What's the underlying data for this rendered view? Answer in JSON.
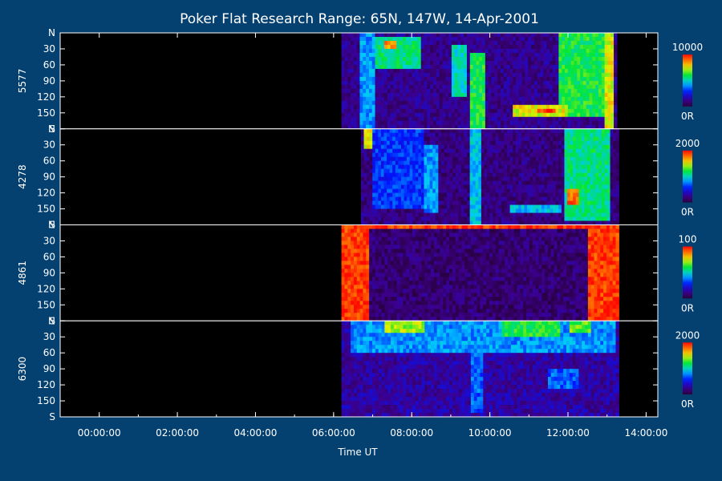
{
  "chart_data": {
    "type": "heatmap",
    "title": "Poker Flat Research Range: 65N, 147W, 14-Apr-2001",
    "xlabel": "Time UT",
    "x_unit": "hours UT",
    "xlim": [
      -1.0,
      14.3
    ],
    "x_ticks": [
      {
        "value": 0,
        "label": "00:00:00"
      },
      {
        "value": 2,
        "label": "02:00:00"
      },
      {
        "value": 4,
        "label": "04:00:00"
      },
      {
        "value": 6,
        "label": "06:00:00"
      },
      {
        "value": 8,
        "label": "08:00:00"
      },
      {
        "value": 10,
        "label": "10:00:00"
      },
      {
        "value": 12,
        "label": "12:00:00"
      },
      {
        "value": 14,
        "label": "14:00:00"
      }
    ],
    "y_unit": "scan angle (degrees, N to S)",
    "ylim": [
      0,
      180
    ],
    "y_ticks": [
      {
        "value": 0,
        "label": "N"
      },
      {
        "value": 30,
        "label": "30"
      },
      {
        "value": 60,
        "label": "60"
      },
      {
        "value": 90,
        "label": "90"
      },
      {
        "value": 120,
        "label": "120"
      },
      {
        "value": 150,
        "label": "150"
      },
      {
        "value": 180,
        "label": "S"
      }
    ],
    "panels": [
      {
        "channel": "5577",
        "cb_max": "10000",
        "cb_min": "0R",
        "data_start_hours": 6.2,
        "data_end_hours": 13.25,
        "background_level": 0.12,
        "features": [
          {
            "t0": 6.7,
            "t1": 7.1,
            "a0": 0,
            "a1": 180,
            "level": 0.4
          },
          {
            "t0": 7.1,
            "t1": 8.2,
            "a0": 5,
            "a1": 70,
            "level": 0.55
          },
          {
            "t0": 7.3,
            "t1": 7.6,
            "a0": 15,
            "a1": 30,
            "level": 0.85
          },
          {
            "t0": 9.0,
            "t1": 9.4,
            "a0": 20,
            "a1": 120,
            "level": 0.5
          },
          {
            "t0": 9.5,
            "t1": 9.9,
            "a0": 40,
            "a1": 180,
            "level": 0.6
          },
          {
            "t0": 10.6,
            "t1": 12.0,
            "a0": 135,
            "a1": 160,
            "level": 0.75
          },
          {
            "t0": 11.2,
            "t1": 11.7,
            "a0": 140,
            "a1": 150,
            "level": 0.95
          },
          {
            "t0": 11.8,
            "t1": 13.2,
            "a0": 0,
            "a1": 160,
            "level": 0.6
          },
          {
            "t0": 12.9,
            "t1": 13.2,
            "a0": 0,
            "a1": 180,
            "level": 0.75
          }
        ]
      },
      {
        "channel": "4278",
        "cb_max": "2000",
        "cb_min": "0R",
        "data_start_hours": 6.7,
        "data_end_hours": 13.3,
        "background_level": 0.1,
        "features": [
          {
            "t0": 6.8,
            "t1": 7.0,
            "a0": 0,
            "a1": 40,
            "level": 0.75
          },
          {
            "t0": 7.0,
            "t1": 8.3,
            "a0": 0,
            "a1": 150,
            "level": 0.3
          },
          {
            "t0": 8.3,
            "t1": 8.7,
            "a0": 30,
            "a1": 160,
            "level": 0.4
          },
          {
            "t0": 9.5,
            "t1": 9.8,
            "a0": 0,
            "a1": 180,
            "level": 0.45
          },
          {
            "t0": 10.5,
            "t1": 11.8,
            "a0": 140,
            "a1": 160,
            "level": 0.45
          },
          {
            "t0": 11.9,
            "t1": 13.1,
            "a0": 0,
            "a1": 170,
            "level": 0.55
          },
          {
            "t0": 12.0,
            "t1": 12.3,
            "a0": 110,
            "a1": 140,
            "level": 0.9
          }
        ]
      },
      {
        "channel": "4861",
        "cb_max": "100",
        "cb_min": "0R",
        "data_start_hours": 6.2,
        "data_end_hours": 13.3,
        "background_level": 0.08,
        "features": [
          {
            "t0": 6.2,
            "t1": 6.9,
            "a0": 0,
            "a1": 180,
            "level": 0.95
          },
          {
            "t0": 12.5,
            "t1": 13.3,
            "a0": 0,
            "a1": 180,
            "level": 0.95
          },
          {
            "t0": 6.2,
            "t1": 13.3,
            "a0": 0,
            "a1": 10,
            "level": 0.95
          }
        ]
      },
      {
        "channel": "6300",
        "cb_max": "2000",
        "cb_min": "0R",
        "data_start_hours": 6.2,
        "data_end_hours": 13.3,
        "background_level": 0.15,
        "features": [
          {
            "t0": 6.4,
            "t1": 13.2,
            "a0": 0,
            "a1": 60,
            "level": 0.4
          },
          {
            "t0": 7.3,
            "t1": 8.3,
            "a0": 0,
            "a1": 25,
            "level": 0.7
          },
          {
            "t0": 10.3,
            "t1": 11.8,
            "a0": 0,
            "a1": 30,
            "level": 0.6
          },
          {
            "t0": 12.0,
            "t1": 12.6,
            "a0": 0,
            "a1": 20,
            "level": 0.65
          },
          {
            "t0": 9.5,
            "t1": 9.8,
            "a0": 60,
            "a1": 170,
            "level": 0.35
          },
          {
            "t0": 11.5,
            "t1": 12.3,
            "a0": 90,
            "a1": 130,
            "level": 0.35
          }
        ]
      }
    ]
  }
}
